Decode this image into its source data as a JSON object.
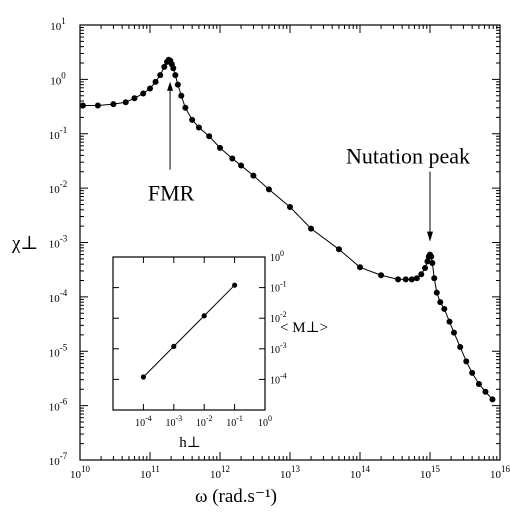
{
  "chart_data": [
    {
      "type": "scatter",
      "title": "",
      "xlabel": "ω (rad.s⁻¹)",
      "ylabel": "χ⊥",
      "x_scale": "log",
      "y_scale": "log",
      "xlim": [
        10000000000.0,
        1e+16
      ],
      "ylim": [
        1e-07,
        10
      ],
      "grid": false,
      "x_ticks": [
        {
          "value": 10000000000.0,
          "base": "10",
          "exp": "10"
        },
        {
          "value": 100000000000.0,
          "base": "10",
          "exp": "11"
        },
        {
          "value": 1000000000000.0,
          "base": "10",
          "exp": "12"
        },
        {
          "value": 10000000000000.0,
          "base": "10",
          "exp": "13"
        },
        {
          "value": 100000000000000.0,
          "base": "10",
          "exp": "14"
        },
        {
          "value": 1000000000000000.0,
          "base": "10",
          "exp": "15"
        },
        {
          "value": 1e+16,
          "base": "10",
          "exp": "16"
        }
      ],
      "y_ticks": [
        {
          "value": 1e-07,
          "base": "10",
          "exp": "-7"
        },
        {
          "value": 1e-06,
          "base": "10",
          "exp": "-6"
        },
        {
          "value": 1e-05,
          "base": "10",
          "exp": "-5"
        },
        {
          "value": 0.0001,
          "base": "10",
          "exp": "-4"
        },
        {
          "value": 0.001,
          "base": "10",
          "exp": "-3"
        },
        {
          "value": 0.01,
          "base": "10",
          "exp": "-2"
        },
        {
          "value": 0.1,
          "base": "10",
          "exp": "-1"
        },
        {
          "value": 1,
          "base": "10",
          "exp": "0"
        },
        {
          "value": 10,
          "base": "10",
          "exp": "1"
        }
      ],
      "series": [
        {
          "x": [
            11000000000.0,
            18000000000.0,
            30000000000.0,
            45000000000.0,
            60000000000.0,
            80000000000.0,
            100000000000.0,
            120000000000.0,
            140000000000.0,
            160000000000.0,
            175000000000.0,
            185000000000.0,
            195000000000.0,
            205000000000.0,
            215000000000.0,
            230000000000.0,
            250000000000.0,
            280000000000.0,
            320000000000.0,
            400000000000.0,
            500000000000.0,
            700000000000.0,
            1000000000000.0,
            1500000000000.0,
            2000000000000.0,
            3000000000000.0,
            5000000000000.0,
            10000000000000.0,
            20000000000000.0,
            50000000000000.0,
            100000000000000.0,
            200000000000000.0,
            350000000000000.0,
            450000000000000.0,
            550000000000000.0,
            650000000000000.0,
            750000000000000.0,
            850000000000000.0,
            920000000000000.0,
            960000000000000.0,
            1000000000000000.0,
            1040000000000000.0,
            1080000000000000.0,
            1150000000000000.0,
            1250000000000000.0,
            1400000000000000.0,
            1600000000000000.0,
            1900000000000000.0,
            2200000000000000.0,
            2700000000000000.0,
            3300000000000000.0,
            4000000000000000.0,
            5000000000000000.0,
            6200000000000000.0,
            7800000000000000.0
          ],
          "y": [
            0.33,
            0.33,
            0.35,
            0.38,
            0.45,
            0.55,
            0.68,
            0.9,
            1.2,
            1.7,
            2.1,
            2.3,
            2.2,
            1.9,
            1.6,
            1.2,
            0.8,
            0.5,
            0.3,
            0.18,
            0.13,
            0.09,
            0.055,
            0.035,
            0.026,
            0.017,
            0.0095,
            0.0045,
            0.0018,
            0.00075,
            0.00035,
            0.00025,
            0.00021,
            0.00021,
            0.00021,
            0.00022,
            0.00026,
            0.00034,
            0.00045,
            0.00055,
            0.0006,
            0.00055,
            0.00042,
            0.00022,
            0.00012,
            8e-05,
            6e-05,
            3.5e-05,
            2.2e-05,
            1.2e-05,
            6.5e-06,
            4e-06,
            2.5e-06,
            1.8e-06,
            1.3e-06
          ]
        }
      ],
      "annotations": [
        {
          "text": "FMR",
          "x": 200000000000.0,
          "y": 2.3
        },
        {
          "text": "Nutation peak",
          "x": 1000000000000000.0,
          "y": 0.0006
        }
      ]
    },
    {
      "type": "line",
      "title": "",
      "xlabel": "h⊥",
      "ylabel": "< M⊥>",
      "x_scale": "log",
      "y_scale": "log",
      "xlim": [
        1e-05,
        1
      ],
      "ylim": [
        1e-05,
        1
      ],
      "grid": false,
      "legend": "none",
      "x_ticks": [
        {
          "value": 0.0001,
          "base": "10",
          "exp": "-4"
        },
        {
          "value": 0.001,
          "base": "10",
          "exp": "-3"
        },
        {
          "value": 0.01,
          "base": "10",
          "exp": "-2"
        },
        {
          "value": 0.1,
          "base": "10",
          "exp": "-1"
        },
        {
          "value": 1,
          "base": "10",
          "exp": "0"
        }
      ],
      "y_ticks": [
        {
          "value": 0.0001,
          "base": "10",
          "exp": "-4"
        },
        {
          "value": 0.001,
          "base": "10",
          "exp": "-3"
        },
        {
          "value": 0.01,
          "base": "10",
          "exp": "-2"
        },
        {
          "value": 0.1,
          "base": "10",
          "exp": "-1"
        },
        {
          "value": 1,
          "base": "10",
          "exp": "0"
        }
      ],
      "series": [
        {
          "x": [
            0.0001,
            0.001,
            0.01,
            0.1
          ],
          "y": [
            0.00012,
            0.0012,
            0.012,
            0.12
          ]
        }
      ]
    }
  ]
}
